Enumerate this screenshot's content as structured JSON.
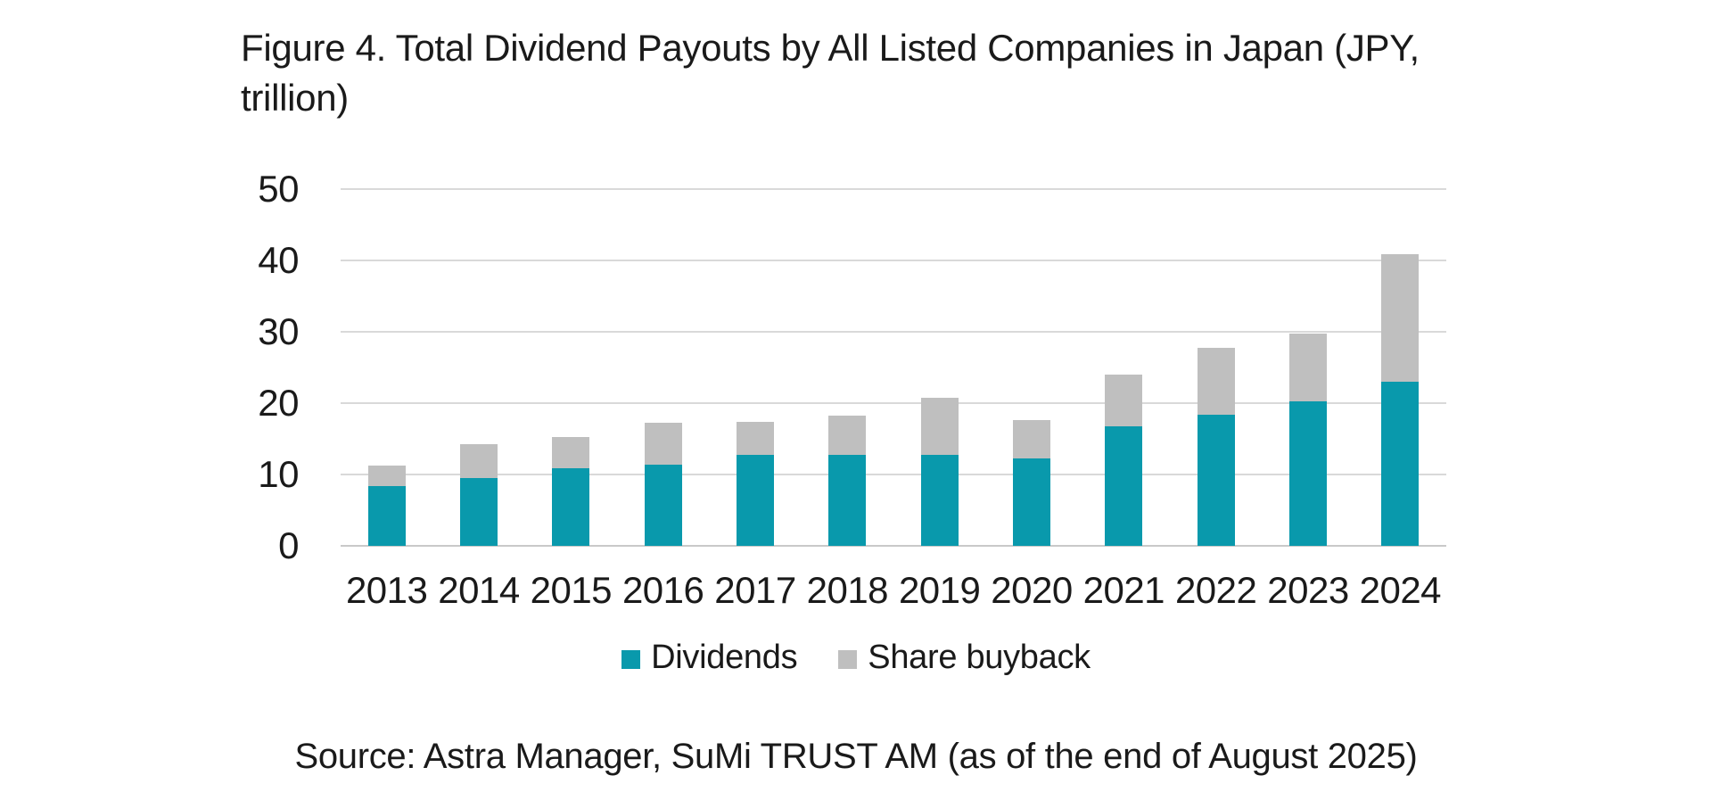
{
  "title": {
    "line1": "Figure 4. Total Dividend Payouts by All Listed Companies in Japan (JPY,",
    "line2": "trillion)"
  },
  "source": "Source: Astra Manager, SuMi TRUST AM (as of the end of August 2025)",
  "colors": {
    "dividends": "#0999AC",
    "share_buyback": "#BFBFBF",
    "gridline": "#D9D9D9",
    "zero_line": "#C9C9C9",
    "text": "#1A1A1A",
    "background": "#FFFFFF"
  },
  "chart_data": {
    "type": "bar",
    "stacked": true,
    "title": "Figure 4. Total Dividend Payouts by All Listed Companies in Japan (JPY, trillion)",
    "categories": [
      "2013",
      "2014",
      "2015",
      "2016",
      "2017",
      "2018",
      "2019",
      "2020",
      "2021",
      "2022",
      "2023",
      "2024"
    ],
    "series": [
      {
        "name": "Dividends",
        "color": "#0999AC",
        "values": [
          8.4,
          9.5,
          10.9,
          11.4,
          12.7,
          12.8,
          12.7,
          12.3,
          16.7,
          18.4,
          20.2,
          23.0
        ]
      },
      {
        "name": "Share buyback",
        "color": "#BFBFBF",
        "values": [
          2.9,
          4.7,
          4.4,
          5.8,
          4.7,
          5.4,
          8.1,
          5.3,
          7.3,
          9.3,
          9.5,
          17.9
        ]
      }
    ],
    "stacked_totals": [
      11.3,
      14.2,
      15.3,
      17.2,
      17.4,
      18.2,
      20.8,
      17.6,
      24.0,
      27.7,
      29.7,
      40.9
    ],
    "xlabel": "",
    "ylabel": "",
    "ylim": [
      0,
      50
    ],
    "yticks": [
      0,
      10,
      20,
      30,
      40,
      50
    ],
    "grid": "horizontal",
    "legend_position": "bottom",
    "legend_labels": [
      "Dividends",
      "Share buyback"
    ]
  }
}
